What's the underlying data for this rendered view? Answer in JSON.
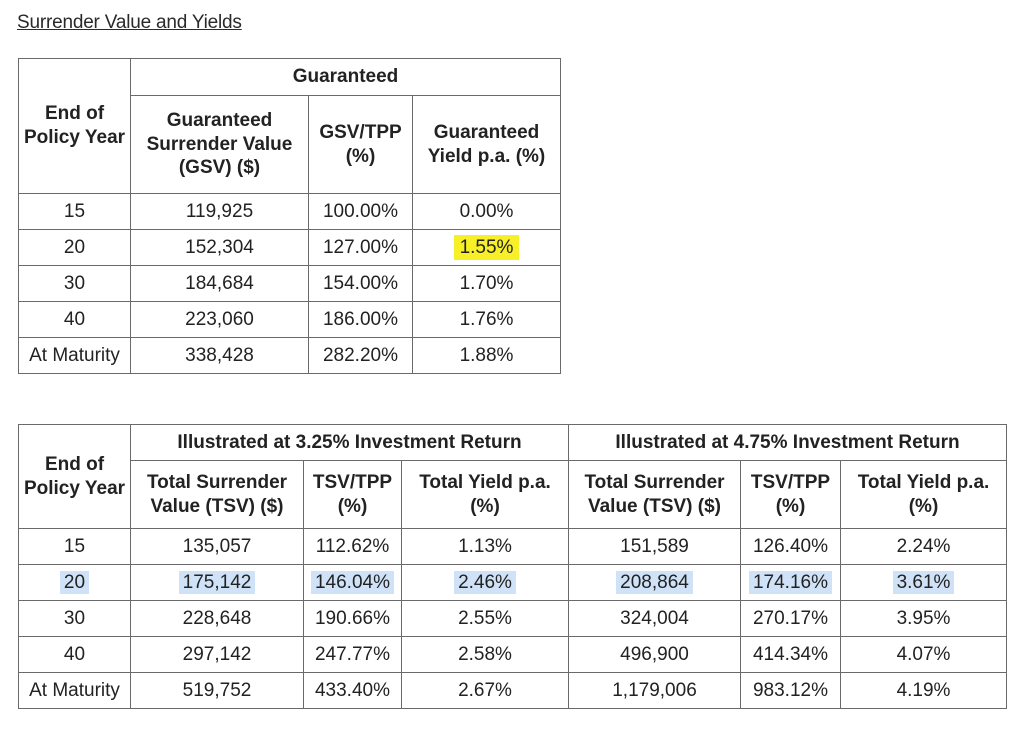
{
  "heading": "Surrender Value and Yields",
  "guaranteed_table": {
    "col_year": "End of Policy Year",
    "group_header": "Guaranteed",
    "col_gsv": "Guaranteed Surrender Value (GSV) ($)",
    "col_gsv_tpp": "GSV/TPP (%)",
    "col_yield": "Guaranteed Yield p.a. (%)",
    "rows": [
      {
        "year": "15",
        "gsv": "119,925",
        "ratio": "100.00%",
        "yield": "0.00%"
      },
      {
        "year": "20",
        "gsv": "152,304",
        "ratio": "127.00%",
        "yield": "1.55%"
      },
      {
        "year": "30",
        "gsv": "184,684",
        "ratio": "154.00%",
        "yield": "1.70%"
      },
      {
        "year": "40",
        "gsv": "223,060",
        "ratio": "186.00%",
        "yield": "1.76%"
      },
      {
        "year": "At Maturity",
        "gsv": "338,428",
        "ratio": "282.20%",
        "yield": "1.88%"
      }
    ],
    "highlight_color": "#f7f028"
  },
  "illustrated_table": {
    "col_year": "End of Policy Year",
    "group_a": "Illustrated at 3.25% Investment Return",
    "group_b": "Illustrated at 4.75% Investment Return",
    "col_tsv": "Total Surrender Value (TSV) ($)",
    "col_tsv_tpp": "TSV/TPP (%)",
    "col_total_yield": "Total Yield p.a. (%)",
    "rows": [
      {
        "year": "15",
        "a_tsv": "135,057",
        "a_ratio": "112.62%",
        "a_yield": "1.13%",
        "b_tsv": "151,589",
        "b_ratio": "126.40%",
        "b_yield": "2.24%"
      },
      {
        "year": "20",
        "a_tsv": "175,142",
        "a_ratio": "146.04%",
        "a_yield": "2.46%",
        "b_tsv": "208,864",
        "b_ratio": "174.16%",
        "b_yield": "3.61%"
      },
      {
        "year": "30",
        "a_tsv": "228,648",
        "a_ratio": "190.66%",
        "a_yield": "2.55%",
        "b_tsv": "324,004",
        "b_ratio": "270.17%",
        "b_yield": "3.95%"
      },
      {
        "year": "40",
        "a_tsv": "297,142",
        "a_ratio": "247.77%",
        "a_yield": "2.58%",
        "b_tsv": "496,900",
        "b_ratio": "414.34%",
        "b_yield": "4.07%"
      },
      {
        "year": "At Maturity",
        "a_tsv": "519,752",
        "a_ratio": "433.40%",
        "a_yield": "2.67%",
        "b_tsv": "1,179,006",
        "b_ratio": "983.12%",
        "b_yield": "4.19%"
      }
    ],
    "highlight_color": "#cfe2f7"
  }
}
